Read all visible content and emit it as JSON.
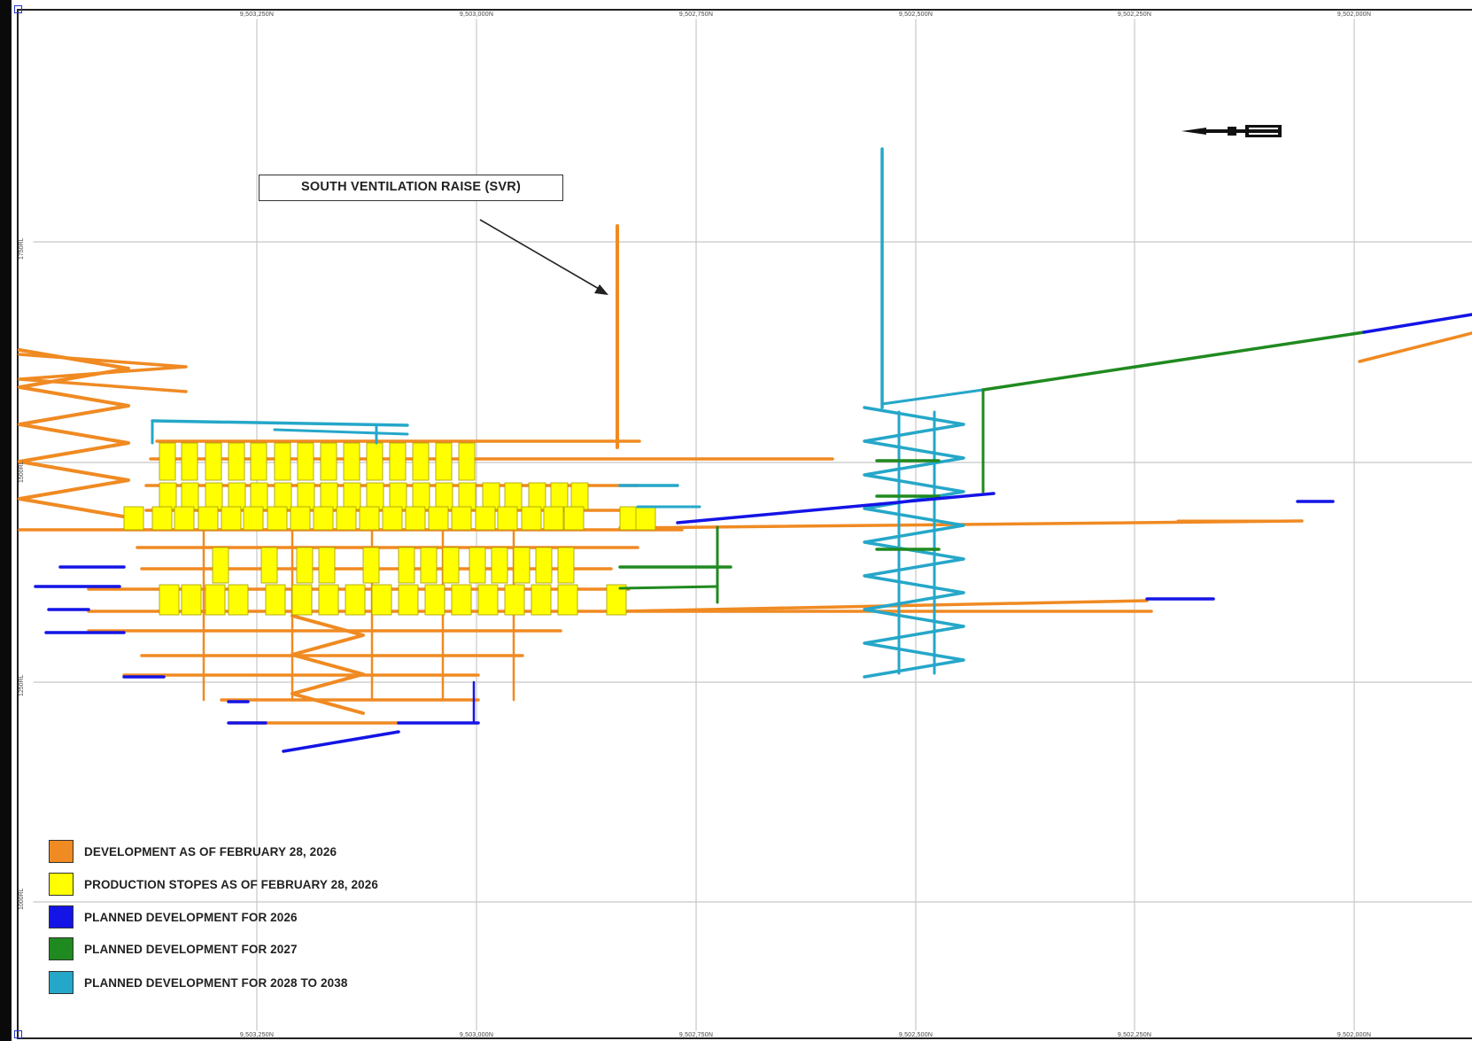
{
  "axes": {
    "northing_labels": [
      "9,503,250N",
      "9,503,000N",
      "9,502,750N",
      "9,502,500N",
      "9,502,250N",
      "9,502,000N"
    ],
    "elevation_labels": [
      "1000RL",
      "1250RL",
      "1500RL",
      "1750RL"
    ]
  },
  "callout": {
    "text": "SOUTH VENTILATION RAISE (SVR)"
  },
  "legend": [
    {
      "label": "DEVELOPMENT AS OF FEBRUARY 28, 2026",
      "color": "#f08a22"
    },
    {
      "label": "PRODUCTION STOPES AS OF FEBRUARY 28, 2026",
      "color": "#ffff00"
    },
    {
      "label": "PLANNED DEVELOPMENT FOR 2026",
      "color": "#1414e6"
    },
    {
      "label": "PLANNED DEVELOPMENT FOR 2027",
      "color": "#1f8a1f"
    },
    {
      "label": "PLANNED DEVELOPMENT FOR 2028 TO 2038",
      "color": "#25a7c9"
    }
  ],
  "colors": {
    "development": "#f08a22",
    "stopes": "#ffff00",
    "planned_2026": "#1414e6",
    "planned_2027": "#1f8a1f",
    "planned_2028_2038": "#25a7c9",
    "grid": "#c8c8c8"
  },
  "north_arrow_icon": "north-arrow-icon"
}
